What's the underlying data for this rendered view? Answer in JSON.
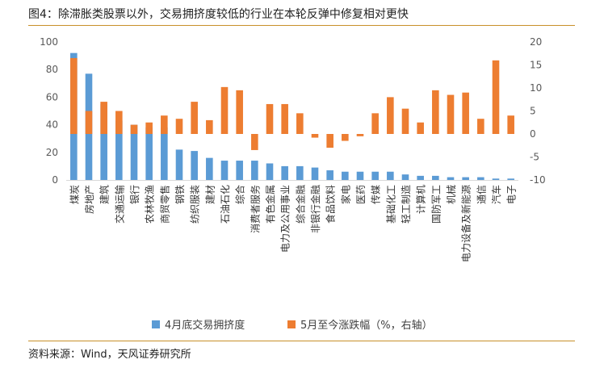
{
  "header": {
    "title": "图4：除滞胀类股票以外，交易拥挤度较低的行业在本轮反弹中修复相对更快"
  },
  "footer": {
    "source": "资料来源：Wind，天风证券研究所"
  },
  "colors": {
    "series1": "#5b9bd5",
    "series2": "#ed7d31",
    "axis": "#d9d9d9",
    "rule": "#c8902a"
  },
  "chart_data": {
    "type": "bar",
    "categories": [
      "煤炭",
      "房地产",
      "建筑",
      "交通运输",
      "银行",
      "农林牧渔",
      "商贸零售",
      "钢铁",
      "纺织服装",
      "建材",
      "石油石化",
      "综合",
      "消费者服务",
      "有色金属",
      "电力及公用事业",
      "综合金融",
      "非银行金融",
      "食品饮料",
      "家电",
      "医药",
      "传媒",
      "基础化工",
      "轻工制造",
      "计算机",
      "国防军工",
      "机械",
      "电力设备及新能源",
      "通信",
      "汽车",
      "电子"
    ],
    "series": [
      {
        "name": "4月底交易拥挤度",
        "axis": "left",
        "values": [
          92,
          77,
          55,
          43,
          40,
          38,
          38,
          22,
          21,
          16,
          14,
          14,
          14,
          12,
          10,
          10,
          9,
          7,
          6,
          6,
          6,
          6,
          4,
          3,
          3,
          2,
          2,
          2,
          1,
          1
        ]
      },
      {
        "name": "5月至今涨跌幅（%，右轴）",
        "axis": "right",
        "values": [
          16.5,
          5.0,
          7.0,
          5.0,
          2.0,
          2.5,
          4.0,
          3.3,
          7.0,
          3.0,
          10.2,
          9.5,
          -3.5,
          6.5,
          6.5,
          4.5,
          -0.8,
          -3.0,
          -1.5,
          -0.5,
          4.5,
          8.0,
          5.5,
          2.5,
          9.5,
          8.5,
          9.0,
          3.3,
          16.0,
          4.0
        ]
      }
    ],
    "ylim_left": [
      0,
      100
    ],
    "ylim_right": [
      -10,
      20
    ],
    "yticks_left": [
      "0",
      "20",
      "40",
      "60",
      "80",
      "100"
    ],
    "yticks_right": [
      "-10",
      "-5",
      "0",
      "5",
      "10",
      "15",
      "20"
    ],
    "legend": [
      "4月底交易拥挤度",
      "5月至今涨跌幅（%，右轴）"
    ],
    "legend_position": "bottom"
  }
}
